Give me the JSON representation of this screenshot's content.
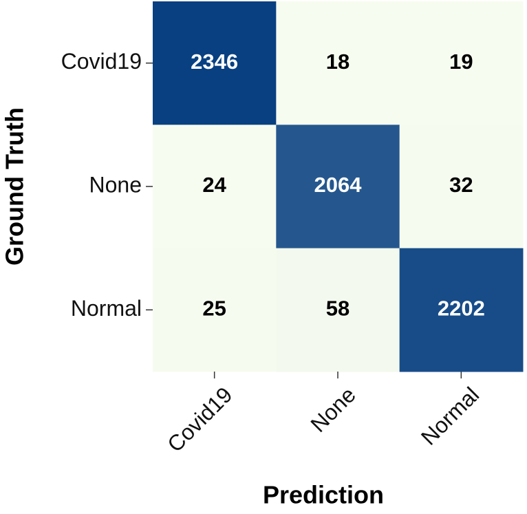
{
  "chart_data": {
    "type": "heatmap",
    "xlabel": "Prediction",
    "ylabel": "Ground Truth",
    "x_categories": [
      "Covid19",
      "None",
      "Normal"
    ],
    "y_categories": [
      "Covid19",
      "None",
      "Normal"
    ],
    "values": [
      [
        2346,
        18,
        19
      ],
      [
        24,
        2064,
        32
      ],
      [
        25,
        58,
        2202
      ]
    ],
    "colormap": [
      "#f7fcf0",
      "#084081"
    ]
  }
}
